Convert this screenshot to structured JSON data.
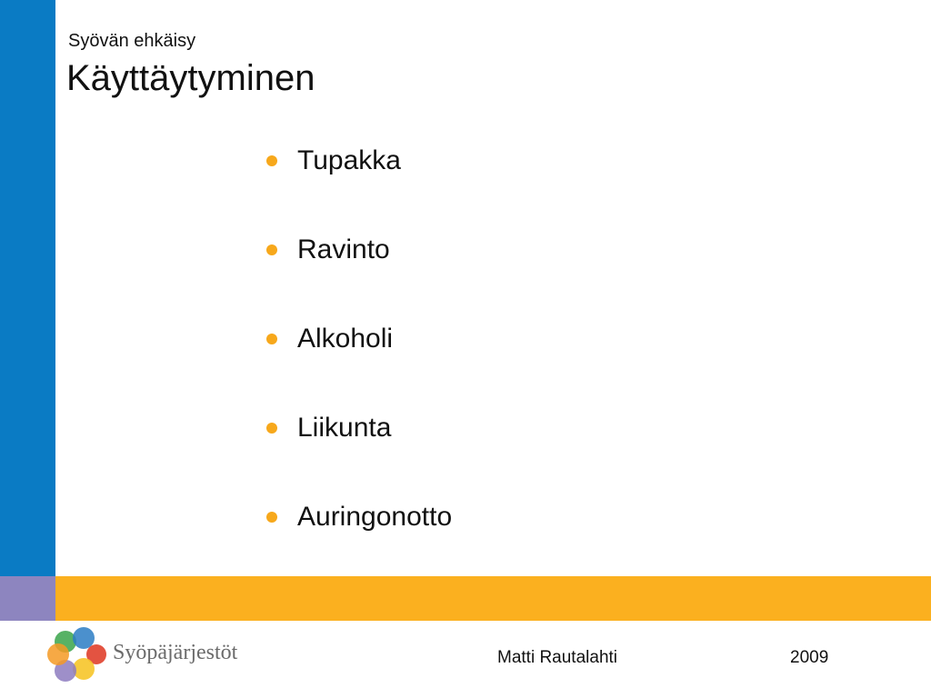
{
  "header": {
    "subtitle": "Syövän ehkäisy",
    "title": "Käyttäytyminen"
  },
  "bullets": [
    "Tupakka",
    "Ravinto",
    "Alkoholi",
    "Liikunta",
    "Auringonotto"
  ],
  "footer": {
    "logo_text": "Syöpäjärjestöt",
    "author": "Matti Rautalahti",
    "year": "2009"
  }
}
